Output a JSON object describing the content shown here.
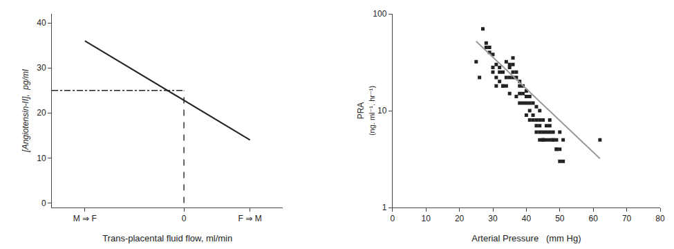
{
  "chart_data": [
    {
      "type": "line",
      "xlabel": "Trans-placental fluid flow, ml/min",
      "ylabel": "[Angiotensin-II],  pg/ml",
      "xlim": [
        -20,
        15
      ],
      "ylim": [
        -1,
        42
      ],
      "xticks": [
        {
          "value": -15,
          "label": "M ⇒ F"
        },
        0,
        {
          "value": 10,
          "label": "F ⇒ M"
        }
      ],
      "yticks": [
        0,
        10,
        20,
        30,
        40
      ],
      "grid": false,
      "series": [
        {
          "x": [
            -15,
            10
          ],
          "values": [
            36,
            14
          ],
          "color": "#222222",
          "line_style": "solid"
        },
        {
          "x": [
            -20,
            0
          ],
          "values": [
            25,
            25
          ],
          "color": "#222222",
          "line_style": "dashdot"
        },
        {
          "x": [
            0,
            0
          ],
          "values": [
            0,
            25
          ],
          "color": "#222222",
          "line_style": "dashed"
        }
      ]
    },
    {
      "type": "scatter",
      "log": "y",
      "xlabel": "Arterial Pressure   (mm Hg)",
      "ylabel": [
        "PRA",
        "(ng. ml⁻¹. hr⁻¹)"
      ],
      "xlim": [
        0,
        80
      ],
      "ylim": [
        1,
        100
      ],
      "xticks": [
        0,
        10,
        20,
        30,
        40,
        50,
        60,
        70,
        80
      ],
      "yticks": [
        1,
        10,
        100
      ],
      "grid": false,
      "series": [
        {
          "type": "scatter",
          "marker": "square",
          "color": "#222222",
          "x": [
            27,
            25,
            26,
            28,
            29,
            30,
            30,
            31,
            31,
            32,
            32,
            33,
            33,
            34,
            34,
            35,
            35,
            35,
            36,
            36,
            36,
            37,
            37,
            38,
            38,
            38,
            39,
            39,
            40,
            40,
            40,
            41,
            41,
            41,
            42,
            42,
            43,
            43,
            43,
            44,
            44,
            44,
            44,
            45,
            45,
            45,
            46,
            46,
            47,
            47,
            47,
            48,
            48,
            49,
            49,
            50,
            50,
            51,
            51,
            62,
            28,
            29,
            30,
            31,
            32,
            33,
            34,
            35,
            36,
            37,
            38,
            39,
            40,
            41,
            42,
            43,
            44,
            45,
            46,
            47,
            48,
            49,
            50,
            45
          ],
          "values": [
            70,
            32,
            22,
            45,
            40,
            38,
            28,
            30,
            22,
            28,
            20,
            25,
            18,
            32,
            22,
            28,
            22,
            15,
            30,
            22,
            35,
            22,
            14,
            20,
            15,
            12,
            18,
            12,
            16,
            12,
            9,
            14,
            10,
            8,
            12,
            9,
            11,
            8,
            6,
            10,
            7,
            6,
            5,
            8,
            6,
            5,
            6,
            5,
            6,
            7,
            5,
            6,
            5,
            5,
            4,
            4,
            6,
            3,
            5,
            5,
            50,
            45,
            25,
            18,
            25,
            18,
            18,
            30,
            25,
            25,
            18,
            15,
            14,
            12,
            8,
            7,
            8,
            5,
            7,
            8,
            5,
            4,
            3,
            5
          ]
        },
        {
          "type": "line",
          "line_style": "solid",
          "color": "#999999",
          "x": [
            25,
            62
          ],
          "values": [
            52,
            3.2
          ]
        }
      ]
    }
  ]
}
